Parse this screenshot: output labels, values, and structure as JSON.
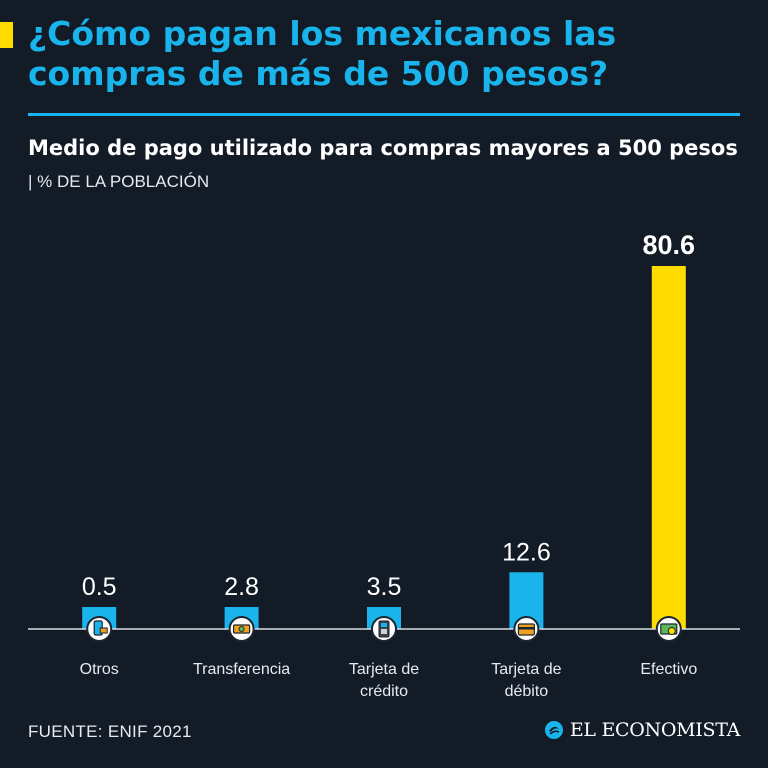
{
  "title": "¿Cómo pagan los mexicanos las compras de más de 500 pesos?",
  "subtitle": "Medio de pago utilizado para compras mayores a 500 pesos",
  "unit_label": "% DE LA POBLACIÓN",
  "source": "FUENTE: ENIF 2021",
  "brand": "EL ECONOMISTA",
  "colors": {
    "background": "#131b26",
    "accent": "#ffdc00",
    "blue": "#19b4ec",
    "highlight": "#ffdc00"
  },
  "chart_data": {
    "type": "bar",
    "categories": [
      "Otros",
      "Transferencia",
      "Tarjeta de crédito",
      "Tarjeta de débito",
      "Efectivo"
    ],
    "values": [
      0.5,
      2.8,
      3.5,
      12.6,
      80.6
    ],
    "value_labels": [
      "0.5",
      "2.8",
      "3.5",
      "12.6",
      "80.6"
    ],
    "category_lines": [
      [
        "Otros"
      ],
      [
        "Transferencia"
      ],
      [
        "Tarjeta de",
        "crédito"
      ],
      [
        "Tarjeta de",
        "débito"
      ],
      [
        "Efectivo"
      ]
    ],
    "icons": [
      "phone-payment-icon",
      "transfer-icon",
      "card-terminal-icon",
      "debit-card-icon",
      "cash-icon"
    ],
    "highlight_index": 4,
    "ylim": [
      0,
      80.6
    ],
    "grid": false,
    "legend": "none"
  }
}
